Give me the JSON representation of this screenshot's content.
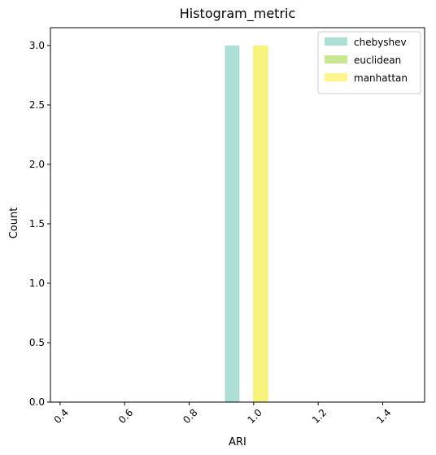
{
  "chart_data": {
    "type": "bar",
    "title": "Histogram_metric",
    "xlabel": "ARI",
    "ylabel": "Count",
    "xlim": [
      0.37,
      1.53
    ],
    "ylim": [
      0,
      3.15
    ],
    "xticks": [
      "0.4",
      "0.6",
      "0.8",
      "1.0",
      "1.2",
      "1.4"
    ],
    "yticks": [
      "0.0",
      "0.5",
      "1.0",
      "1.5",
      "2.0",
      "2.5",
      "3.0"
    ],
    "grid": false,
    "legend_position": "top-right",
    "series": [
      {
        "name": "chebyshev",
        "color": "#9fd9d0",
        "opacity": 0.85,
        "bins": [
          {
            "x0": 0.911,
            "x1": 0.956,
            "count": 3
          }
        ]
      },
      {
        "name": "euclidean",
        "color": "#bfe37f",
        "opacity": 0.85,
        "bins": [
          {
            "x0": 0.998,
            "x1": 1.045,
            "count": 3
          }
        ]
      },
      {
        "name": "manhattan",
        "color": "#fff27a",
        "opacity": 0.85,
        "bins": [
          {
            "x0": 0.998,
            "x1": 1.045,
            "count": 3
          }
        ]
      }
    ]
  }
}
